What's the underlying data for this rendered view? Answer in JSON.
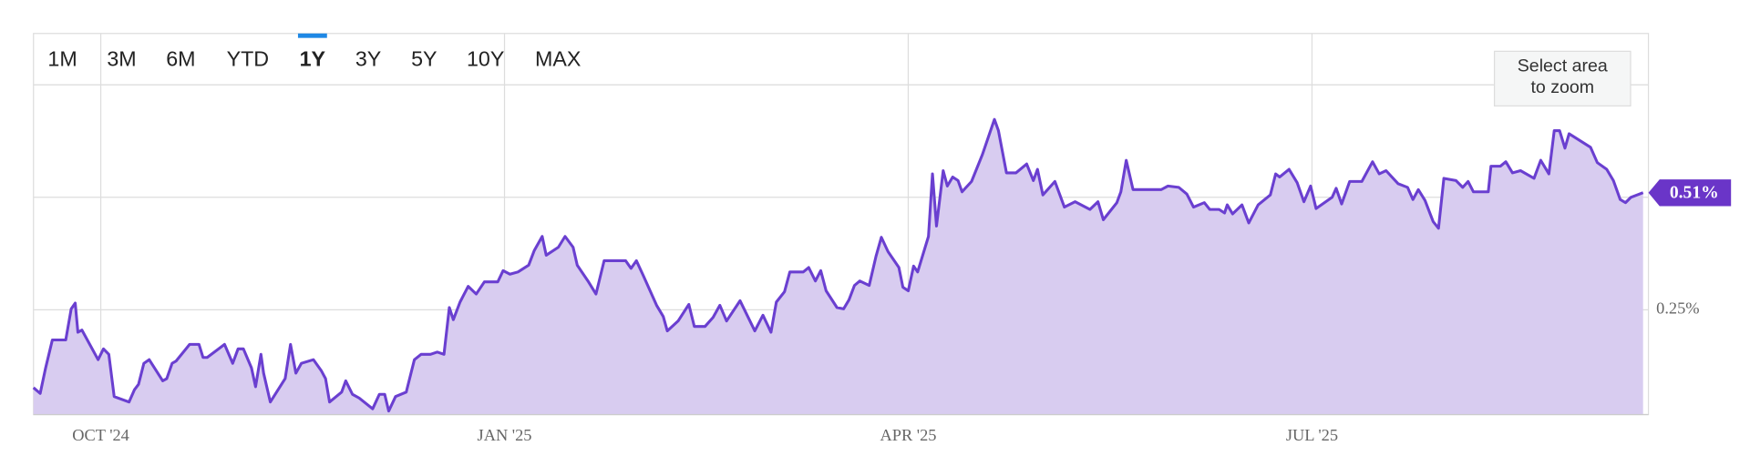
{
  "range_selector": {
    "buttons": [
      "1M",
      "3M",
      "6M",
      "YTD",
      "1Y",
      "3Y",
      "5Y",
      "10Y",
      "MAX"
    ],
    "active": 4,
    "disabled": [
      7,
      8
    ]
  },
  "zoom_hint": [
    "Select area",
    "to zoom"
  ],
  "chart_data": {
    "type": "area",
    "color": "#6a3fd0",
    "fill_color": "#d8ccf0",
    "xlim": [
      -0.5,
      11.5
    ],
    "xticks": [
      {
        "value": 0,
        "label": "OCT '24"
      },
      {
        "value": 3,
        "label": "JAN '25"
      },
      {
        "value": 6,
        "label": "APR '25"
      },
      {
        "value": 9,
        "label": "JUL '25"
      }
    ],
    "ylim": [
      0.017,
      0.75
    ],
    "yticks": [
      {
        "value": 0.25,
        "label": "0.25%"
      }
    ],
    "y_gridlines": [
      0.25,
      0.5,
      0.75
    ],
    "current_value": {
      "value": 0.51,
      "label": "0.51%"
    },
    "x": [
      -0.5,
      -0.45,
      -0.41,
      -0.36,
      -0.26,
      -0.22,
      -0.19,
      -0.17,
      -0.14,
      -0.02,
      0.02,
      0.06,
      0.1,
      0.21,
      0.25,
      0.28,
      0.32,
      0.36,
      0.46,
      0.49,
      0.53,
      0.56,
      0.66,
      0.73,
      0.76,
      0.79,
      0.92,
      0.98,
      1.02,
      1.06,
      1.12,
      1.15,
      1.19,
      1.21,
      1.26,
      1.37,
      1.41,
      1.45,
      1.49,
      1.58,
      1.64,
      1.67,
      1.7,
      1.79,
      1.82,
      1.87,
      1.92,
      2.02,
      2.07,
      2.11,
      2.14,
      2.19,
      2.27,
      2.33,
      2.38,
      2.45,
      2.5,
      2.55,
      2.59,
      2.62,
      2.67,
      2.73,
      2.79,
      2.85,
      2.95,
      2.99,
      3.04,
      3.1,
      3.18,
      3.22,
      3.28,
      3.31,
      3.4,
      3.45,
      3.51,
      3.54,
      3.62,
      3.68,
      3.74,
      3.9,
      3.94,
      3.98,
      4.03,
      4.13,
      4.18,
      4.21,
      4.29,
      4.37,
      4.41,
      4.49,
      4.55,
      4.6,
      4.65,
      4.75,
      4.86,
      4.92,
      4.98,
      5.02,
      5.08,
      5.12,
      5.22,
      5.26,
      5.31,
      5.35,
      5.39,
      5.47,
      5.52,
      5.56,
      5.6,
      5.64,
      5.71,
      5.76,
      5.8,
      5.85,
      5.93,
      5.96,
      6.0,
      6.04,
      6.07,
      6.15,
      6.18,
      6.21,
      6.26,
      6.29,
      6.33,
      6.37,
      6.4,
      6.47,
      6.55,
      6.64,
      6.67,
      6.73,
      6.8,
      6.88,
      6.93,
      6.96,
      7.0,
      7.09,
      7.16,
      7.24,
      7.35,
      7.41,
      7.45,
      7.55,
      7.58,
      7.62,
      7.67,
      7.88,
      7.93,
      8.01,
      8.07,
      8.12,
      8.2,
      8.24,
      8.31,
      8.35,
      8.37,
      8.41,
      8.48,
      8.53,
      8.6,
      8.69,
      8.73,
      8.76,
      8.83,
      8.89,
      8.94,
      8.99,
      9.03,
      9.15,
      9.18,
      9.22,
      9.28,
      9.37,
      9.45,
      9.5,
      9.55,
      9.64,
      9.71,
      9.75,
      9.79,
      9.84,
      9.9,
      9.94,
      9.98,
      10.07,
      10.12,
      10.16,
      10.2,
      10.31,
      10.33,
      10.4,
      10.44,
      10.49,
      10.55,
      10.65,
      10.7,
      10.76,
      10.8,
      10.84,
      10.88,
      10.91,
      11.07,
      11.12,
      11.19,
      11.24,
      11.29,
      11.33,
      11.37,
      11.46
    ],
    "values": [
      0.077,
      0.064,
      0.121,
      0.183,
      0.183,
      0.252,
      0.265,
      0.2,
      0.205,
      0.139,
      0.163,
      0.151,
      0.057,
      0.045,
      0.072,
      0.084,
      0.131,
      0.139,
      0.092,
      0.097,
      0.131,
      0.136,
      0.173,
      0.173,
      0.144,
      0.144,
      0.173,
      0.131,
      0.163,
      0.163,
      0.121,
      0.079,
      0.151,
      0.109,
      0.045,
      0.097,
      0.173,
      0.109,
      0.131,
      0.139,
      0.114,
      0.097,
      0.045,
      0.067,
      0.092,
      0.062,
      0.054,
      0.03,
      0.062,
      0.062,
      0.025,
      0.057,
      0.067,
      0.139,
      0.151,
      0.151,
      0.156,
      0.151,
      0.255,
      0.228,
      0.267,
      0.302,
      0.285,
      0.312,
      0.312,
      0.337,
      0.329,
      0.334,
      0.349,
      0.381,
      0.413,
      0.371,
      0.389,
      0.413,
      0.389,
      0.349,
      0.314,
      0.285,
      0.359,
      0.359,
      0.342,
      0.359,
      0.327,
      0.26,
      0.235,
      0.203,
      0.225,
      0.262,
      0.213,
      0.213,
      0.233,
      0.26,
      0.225,
      0.27,
      0.203,
      0.238,
      0.2,
      0.267,
      0.29,
      0.334,
      0.334,
      0.344,
      0.314,
      0.337,
      0.292,
      0.255,
      0.252,
      0.272,
      0.304,
      0.314,
      0.304,
      0.369,
      0.411,
      0.379,
      0.344,
      0.3,
      0.292,
      0.347,
      0.334,
      0.413,
      0.552,
      0.436,
      0.559,
      0.525,
      0.545,
      0.537,
      0.512,
      0.535,
      0.594,
      0.673,
      0.648,
      0.554,
      0.554,
      0.574,
      0.537,
      0.562,
      0.505,
      0.535,
      0.478,
      0.49,
      0.473,
      0.49,
      0.45,
      0.488,
      0.512,
      0.582,
      0.517,
      0.517,
      0.525,
      0.522,
      0.507,
      0.478,
      0.488,
      0.473,
      0.473,
      0.465,
      0.483,
      0.463,
      0.483,
      0.443,
      0.483,
      0.505,
      0.552,
      0.545,
      0.562,
      0.532,
      0.49,
      0.525,
      0.475,
      0.5,
      0.52,
      0.485,
      0.535,
      0.535,
      0.579,
      0.552,
      0.559,
      0.53,
      0.522,
      0.495,
      0.517,
      0.493,
      0.446,
      0.431,
      0.542,
      0.537,
      0.522,
      0.535,
      0.512,
      0.512,
      0.569,
      0.569,
      0.579,
      0.554,
      0.559,
      0.542,
      0.582,
      0.552,
      0.648,
      0.648,
      0.609,
      0.641,
      0.611,
      0.577,
      0.562,
      0.537,
      0.495,
      0.488,
      0.5,
      0.51
    ]
  }
}
